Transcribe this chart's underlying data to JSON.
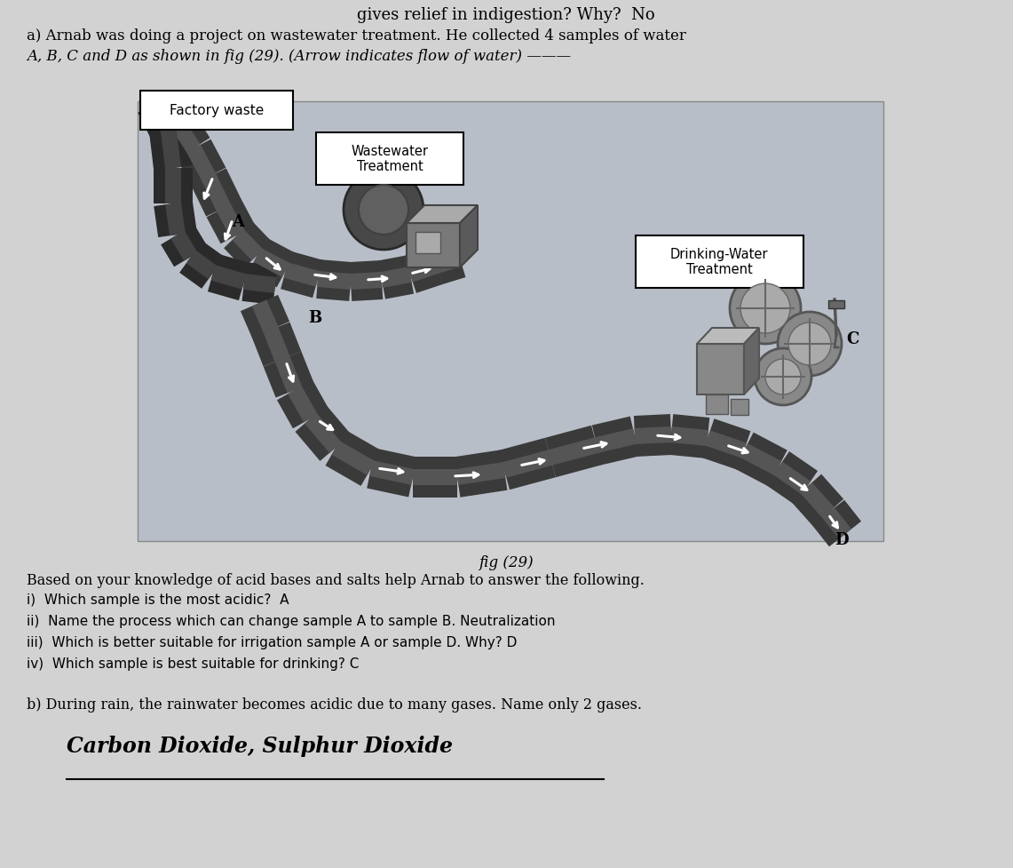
{
  "bg_color": "#c8c8c8",
  "page_bg": "#d2d2d2",
  "title_line1": "a) Arnab was doing a project on wastewater treatment. He collected 4 samples of water",
  "title_line2": "A, B, C and D as shown in fig (29). (Arrow indicates flow of water) ———",
  "fig_caption": "fig (29)",
  "q0": "Based on your knowledge of acid bases and salts help Arnab to answer the following.",
  "q1": "i)  Which sample is the most acidic?  A",
  "q2": "ii)  Name the process which can change sample A to sample B. Neutralization",
  "q3": "iii)  Which is better suitable for irrigation sample A or sample D. Why? D",
  "q4": "iv)  Which sample is best suitable for drinking? C",
  "bottom_text": "b) During rain, the rainwater becomes acidic due to many gases. Name only 2 gases.",
  "handwriting_text": "Carbon Dioxide, Sulphur Dioxide",
  "label_factory": "Factory waste",
  "label_wastewater": "Wastewater\nTreatment",
  "label_drinking": "Drinking-Water\nTreatment",
  "label_A": "A",
  "label_B": "B",
  "label_C": "C",
  "label_D": "D",
  "top_text": "gives relief in indigestion? Why?  No",
  "diag_bg": "#b8bec8",
  "road_color": "#3a3a3a",
  "road_inner": "#555555",
  "tank_color": "#555555",
  "bldg_color": "#777777"
}
